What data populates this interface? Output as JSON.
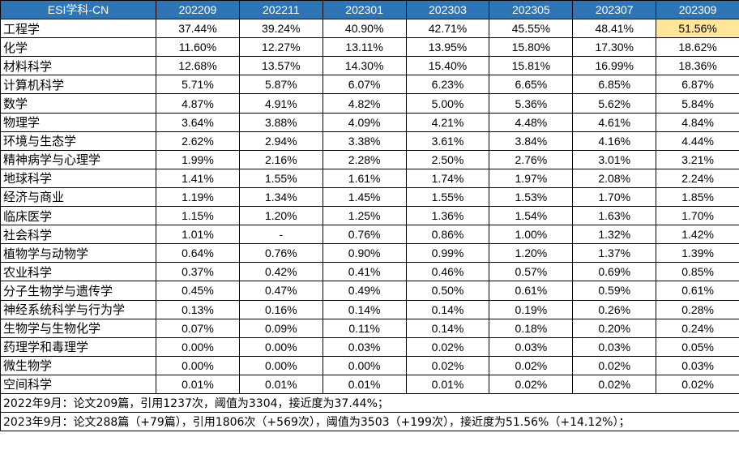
{
  "header": {
    "first": "ESI学科-CN",
    "periods": [
      "202209",
      "202211",
      "202301",
      "202303",
      "202305",
      "202307",
      "202309"
    ]
  },
  "highlight_color": "#ffe699",
  "header_color": "#2e75b6",
  "rows": [
    {
      "subject": "工程学",
      "values": [
        "37.44%",
        "39.24%",
        "40.90%",
        "42.71%",
        "45.55%",
        "48.41%",
        "51.56%"
      ],
      "highlight": 6
    },
    {
      "subject": "化学",
      "values": [
        "11.60%",
        "12.27%",
        "13.11%",
        "13.95%",
        "15.80%",
        "17.30%",
        "18.62%"
      ]
    },
    {
      "subject": "材料科学",
      "values": [
        "12.68%",
        "13.57%",
        "14.30%",
        "15.40%",
        "15.81%",
        "16.99%",
        "18.36%"
      ]
    },
    {
      "subject": "计算机科学",
      "values": [
        "5.71%",
        "5.87%",
        "6.07%",
        "6.23%",
        "6.65%",
        "6.85%",
        "6.87%"
      ]
    },
    {
      "subject": "数学",
      "values": [
        "4.87%",
        "4.91%",
        "4.82%",
        "5.00%",
        "5.36%",
        "5.62%",
        "5.84%"
      ]
    },
    {
      "subject": "物理学",
      "values": [
        "3.64%",
        "3.88%",
        "4.09%",
        "4.21%",
        "4.48%",
        "4.61%",
        "4.84%"
      ]
    },
    {
      "subject": "环境与生态学",
      "values": [
        "2.62%",
        "2.94%",
        "3.38%",
        "3.61%",
        "3.84%",
        "4.16%",
        "4.44%"
      ]
    },
    {
      "subject": "精神病学与心理学",
      "values": [
        "1.99%",
        "2.16%",
        "2.28%",
        "2.50%",
        "2.76%",
        "3.01%",
        "3.21%"
      ]
    },
    {
      "subject": "地球科学",
      "values": [
        "1.41%",
        "1.55%",
        "1.61%",
        "1.74%",
        "1.97%",
        "2.08%",
        "2.24%"
      ]
    },
    {
      "subject": "经济与商业",
      "values": [
        "1.19%",
        "1.34%",
        "1.45%",
        "1.55%",
        "1.53%",
        "1.70%",
        "1.85%"
      ]
    },
    {
      "subject": "临床医学",
      "values": [
        "1.15%",
        "1.20%",
        "1.25%",
        "1.36%",
        "1.54%",
        "1.63%",
        "1.70%"
      ]
    },
    {
      "subject": "社会科学",
      "values": [
        "1.01%",
        "-",
        "0.76%",
        "0.86%",
        "1.00%",
        "1.32%",
        "1.42%"
      ]
    },
    {
      "subject": "植物学与动物学",
      "values": [
        "0.64%",
        "0.76%",
        "0.90%",
        "0.99%",
        "1.20%",
        "1.37%",
        "1.39%"
      ]
    },
    {
      "subject": "农业科学",
      "values": [
        "0.37%",
        "0.42%",
        "0.41%",
        "0.46%",
        "0.57%",
        "0.69%",
        "0.85%"
      ]
    },
    {
      "subject": "分子生物学与遗传学",
      "values": [
        "0.45%",
        "0.47%",
        "0.49%",
        "0.50%",
        "0.61%",
        "0.59%",
        "0.61%"
      ]
    },
    {
      "subject": "神经系统科学与行为学",
      "values": [
        "0.13%",
        "0.16%",
        "0.14%",
        "0.14%",
        "0.19%",
        "0.26%",
        "0.28%"
      ]
    },
    {
      "subject": "生物学与生物化学",
      "values": [
        "0.07%",
        "0.09%",
        "0.11%",
        "0.14%",
        "0.18%",
        "0.20%",
        "0.24%"
      ]
    },
    {
      "subject": "药理学和毒理学",
      "values": [
        "0.00%",
        "0.00%",
        "0.03%",
        "0.02%",
        "0.03%",
        "0.03%",
        "0.05%"
      ]
    },
    {
      "subject": "微生物学",
      "values": [
        "0.00%",
        "0.00%",
        "0.00%",
        "0.02%",
        "0.02%",
        "0.02%",
        "0.03%"
      ]
    },
    {
      "subject": "空间科学",
      "values": [
        "0.01%",
        "0.01%",
        "0.01%",
        "0.01%",
        "0.02%",
        "0.02%",
        "0.02%"
      ]
    }
  ],
  "notes": [
    "2022年9月：论文209篇，引用1237次，阈值为3304，接近度为37.44%；",
    "2023年9月：论文288篇（+79篇），引用1806次（+569次），阈值为3503（+199次），接近度为51.56%（+14.12%）；"
  ]
}
